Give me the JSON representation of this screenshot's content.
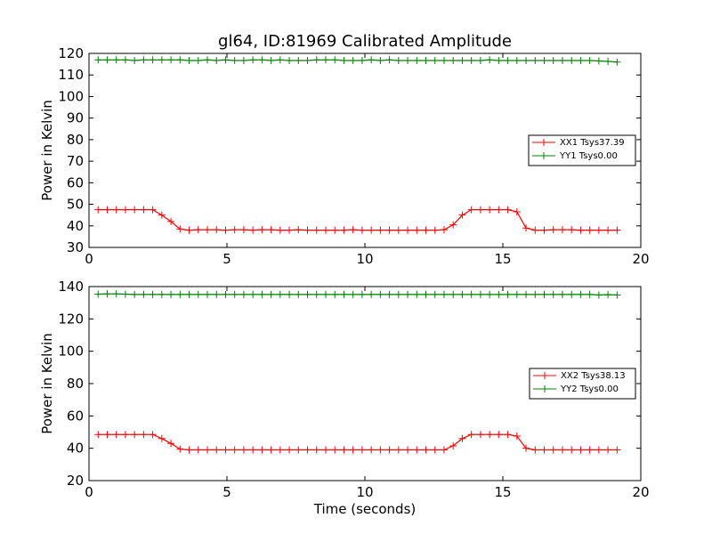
{
  "figure": {
    "title": "gl64, ID:81969 Calibrated Amplitude"
  },
  "chart_data": [
    {
      "type": "line",
      "title": "gl64, ID:81969 Calibrated Amplitude",
      "xlabel": "",
      "ylabel": "Power in Kelvin",
      "xlim": [
        0,
        20
      ],
      "ylim": [
        30,
        120
      ],
      "xticks": [
        "0",
        "5",
        "10",
        "15",
        "20"
      ],
      "yticks": [
        "30",
        "40",
        "50",
        "60",
        "70",
        "80",
        "90",
        "100",
        "110",
        "120"
      ],
      "grid": false,
      "legend_position": "right",
      "x": [
        0.33,
        0.66,
        0.99,
        1.32,
        1.65,
        1.98,
        2.31,
        2.64,
        2.97,
        3.3,
        3.63,
        3.96,
        4.29,
        4.62,
        4.95,
        5.28,
        5.61,
        5.94,
        6.27,
        6.6,
        6.93,
        7.26,
        7.59,
        7.92,
        8.25,
        8.58,
        8.91,
        9.24,
        9.57,
        9.9,
        10.23,
        10.56,
        10.89,
        11.22,
        11.55,
        11.88,
        12.21,
        12.54,
        12.87,
        13.2,
        13.53,
        13.86,
        14.19,
        14.52,
        14.85,
        15.18,
        15.51,
        15.84,
        16.17,
        16.5,
        16.83,
        17.16,
        17.49,
        17.82,
        18.15,
        18.48,
        18.81,
        19.14
      ],
      "series": [
        {
          "name": "XX1 Tsys37.39",
          "color": "#ff0000",
          "values": [
            47.5,
            47.5,
            47.5,
            47.5,
            47.5,
            47.5,
            47.5,
            45,
            42,
            38.5,
            38,
            38.2,
            38.2,
            38.2,
            38,
            38.2,
            38.2,
            38,
            38.2,
            38.2,
            38,
            38,
            38.2,
            38,
            38,
            38,
            38,
            38,
            38.2,
            38,
            38,
            38,
            38,
            38,
            38,
            38,
            38,
            38,
            38.2,
            40.5,
            45,
            47.5,
            47.5,
            47.5,
            47.5,
            47.5,
            46.5,
            39,
            38,
            38,
            38.2,
            38.2,
            38.2,
            38,
            38,
            38,
            38,
            38
          ]
        },
        {
          "name": "YY1 Tsys0.00",
          "color": "#008000",
          "values": [
            117,
            117,
            117,
            117,
            116.7,
            117,
            117,
            117,
            117,
            117,
            116.7,
            116.7,
            117,
            116.7,
            117,
            116.7,
            116.7,
            117,
            117,
            116.7,
            117,
            116.7,
            116.7,
            116.7,
            117,
            117,
            117,
            116.7,
            116.7,
            116.7,
            117,
            116.7,
            117,
            116.7,
            116.7,
            116.7,
            116.7,
            116.7,
            116.7,
            116.7,
            116.7,
            116.7,
            116.7,
            117,
            116.7,
            116.7,
            116.7,
            116.7,
            116.7,
            116.7,
            116.7,
            116.7,
            116.7,
            116.7,
            116.7,
            116.5,
            116.3,
            116
          ]
        }
      ]
    },
    {
      "type": "line",
      "title": "",
      "xlabel": "Time (seconds)",
      "ylabel": "Power in Kelvin",
      "xlim": [
        0,
        20
      ],
      "ylim": [
        20,
        140
      ],
      "xticks": [
        "0",
        "5",
        "10",
        "15",
        "20"
      ],
      "yticks": [
        "20",
        "40",
        "60",
        "80",
        "100",
        "120",
        "140"
      ],
      "grid": false,
      "legend_position": "right",
      "x": [
        0.33,
        0.66,
        0.99,
        1.32,
        1.65,
        1.98,
        2.31,
        2.64,
        2.97,
        3.3,
        3.63,
        3.96,
        4.29,
        4.62,
        4.95,
        5.28,
        5.61,
        5.94,
        6.27,
        6.6,
        6.93,
        7.26,
        7.59,
        7.92,
        8.25,
        8.58,
        8.91,
        9.24,
        9.57,
        9.9,
        10.23,
        10.56,
        10.89,
        11.22,
        11.55,
        11.88,
        12.21,
        12.54,
        12.87,
        13.2,
        13.53,
        13.86,
        14.19,
        14.52,
        14.85,
        15.18,
        15.51,
        15.84,
        16.17,
        16.5,
        16.83,
        17.16,
        17.49,
        17.82,
        18.15,
        18.48,
        18.81,
        19.14
      ],
      "series": [
        {
          "name": "XX2 Tsys38.13",
          "color": "#ff0000",
          "values": [
            48.5,
            48.5,
            48.5,
            48.5,
            48.5,
            48.5,
            48.5,
            46,
            43,
            39.5,
            39,
            39,
            39,
            39,
            39,
            39,
            39,
            39,
            39,
            39,
            39,
            39,
            39,
            39,
            39,
            39,
            39,
            39,
            39,
            39,
            39,
            39,
            39,
            39,
            39,
            39,
            39,
            39,
            39,
            41.5,
            46,
            48.5,
            48.5,
            48.5,
            48.5,
            48.5,
            47.5,
            40,
            39,
            39,
            39,
            39,
            39,
            39,
            39,
            39,
            39,
            39
          ]
        },
        {
          "name": "YY2 Tsys0.00",
          "color": "#008000",
          "values": [
            135.3,
            135.5,
            135.5,
            135.3,
            135.1,
            135.1,
            135.1,
            135.1,
            135.1,
            135.1,
            135.1,
            135.1,
            135.1,
            135.1,
            135.1,
            135.1,
            135.1,
            135.1,
            135.1,
            135.1,
            135.1,
            135.1,
            135.1,
            135.1,
            135.1,
            135.1,
            135.1,
            135.1,
            135.1,
            135.1,
            135.1,
            135.1,
            135.1,
            135.1,
            135.1,
            135.1,
            135.1,
            135.1,
            135.1,
            135.1,
            135.1,
            135.1,
            135.1,
            135.1,
            135.1,
            135.1,
            135.1,
            135.1,
            135.1,
            135.1,
            135.1,
            135.1,
            135.1,
            135.1,
            135.1,
            134.8,
            135,
            134.8
          ]
        }
      ]
    }
  ]
}
